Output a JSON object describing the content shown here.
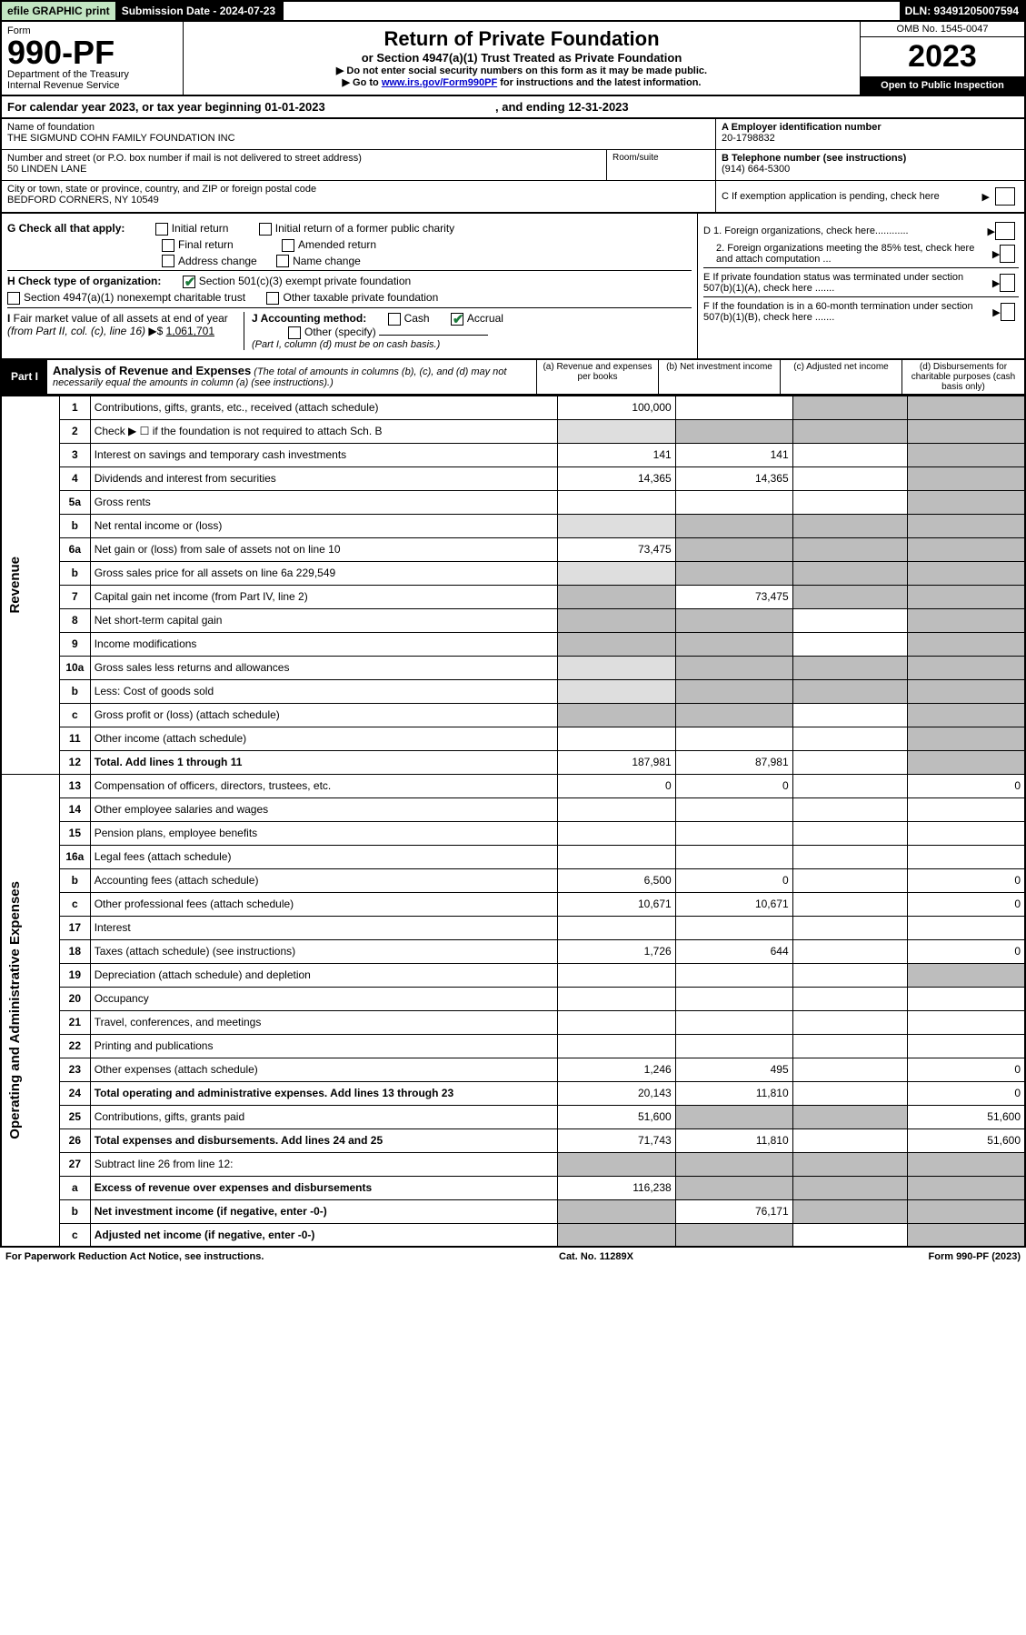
{
  "topbar": {
    "efile": "efile GRAPHIC print",
    "sub_label": "Submission Date - 2024-07-23",
    "dln": "DLN: 93491205007594"
  },
  "header": {
    "form_word": "Form",
    "form_no": "990-PF",
    "dept": "Department of the Treasury",
    "irs": "Internal Revenue Service",
    "title": "Return of Private Foundation",
    "subtitle": "or Section 4947(a)(1) Trust Treated as Private Foundation",
    "note1": "▶ Do not enter social security numbers on this form as it may be made public.",
    "note2": "▶ Go to www.irs.gov/Form990PF for instructions and the latest information.",
    "omb": "OMB No. 1545-0047",
    "year": "2023",
    "open": "Open to Public Inspection"
  },
  "calendar": {
    "line": "For calendar year 2023, or tax year beginning 01-01-2023",
    "ending_gap": ", and ending 12-31-2023"
  },
  "foundation": {
    "name_label": "Name of foundation",
    "name": "THE SIGMUND COHN FAMILY FOUNDATION INC",
    "street_label": "Number and street (or P.O. box number if mail is not delivered to street address)",
    "street": "50 LINDEN LANE",
    "room_label": "Room/suite",
    "city_label": "City or town, state or province, country, and ZIP or foreign postal code",
    "city": "BEDFORD CORNERS, NY  10549",
    "ein_label": "A Employer identification number",
    "ein": "20-1798832",
    "phone_label": "B Telephone number (see instructions)",
    "phone": "(914) 664-5300",
    "c_label": "C If exemption application is pending, check here",
    "d1": "D 1. Foreign organizations, check here............",
    "d2": "2. Foreign organizations meeting the 85% test, check here and attach computation ...",
    "e": "E  If private foundation status was terminated under section 507(b)(1)(A), check here .......",
    "f": "F  If the foundation is in a 60-month termination under section 507(b)(1)(B), check here ......."
  },
  "checks": {
    "g_label": "G Check all that apply:",
    "initial": "Initial return",
    "final": "Final return",
    "address": "Address change",
    "initial_former": "Initial return of a former public charity",
    "amended": "Amended return",
    "name_change": "Name change",
    "h_label": "H Check type of organization:",
    "sec501": "Section 501(c)(3) exempt private foundation",
    "sec4947": "Section 4947(a)(1) nonexempt charitable trust",
    "other_tax": "Other taxable private foundation",
    "i_label": "I Fair market value of all assets at end of year (from Part II, col. (c), line 16) ▶$",
    "i_value": "1,061,701",
    "j_label": "J Accounting method:",
    "cash": "Cash",
    "accrual": "Accrual",
    "other_spec": "Other (specify)",
    "j_note": "(Part I, column (d) must be on cash basis.)"
  },
  "part1": {
    "label": "Part I",
    "title": "Analysis of Revenue and Expenses",
    "note": "(The total of amounts in columns (b), (c), and (d) may not necessarily equal the amounts in column (a) (see instructions).)",
    "col_a": "(a)  Revenue and expenses per books",
    "col_b": "(b)  Net investment income",
    "col_c": "(c)  Adjusted net income",
    "col_d": "(d)  Disbursements for charitable purposes (cash basis only)"
  },
  "side_labels": {
    "revenue": "Revenue",
    "expenses": "Operating and Administrative Expenses"
  },
  "rows": [
    {
      "n": "1",
      "desc": "Contributions, gifts, grants, etc., received (attach schedule)",
      "a": "100,000",
      "b": "",
      "c": "shaded",
      "d": "shaded"
    },
    {
      "n": "2",
      "desc": "Check ▶ ☐ if the foundation is not required to attach Sch. B",
      "a": "shaded-lt",
      "b": "shaded",
      "c": "shaded",
      "d": "shaded"
    },
    {
      "n": "3",
      "desc": "Interest on savings and temporary cash investments",
      "a": "141",
      "b": "141",
      "c": "",
      "d": "shaded"
    },
    {
      "n": "4",
      "desc": "Dividends and interest from securities",
      "a": "14,365",
      "b": "14,365",
      "c": "",
      "d": "shaded"
    },
    {
      "n": "5a",
      "desc": "Gross rents",
      "a": "",
      "b": "",
      "c": "",
      "d": "shaded"
    },
    {
      "n": "b",
      "desc": "Net rental income or (loss)",
      "a": "shaded-lt",
      "b": "shaded",
      "c": "shaded",
      "d": "shaded"
    },
    {
      "n": "6a",
      "desc": "Net gain or (loss) from sale of assets not on line 10",
      "a": "73,475",
      "b": "shaded",
      "c": "shaded",
      "d": "shaded"
    },
    {
      "n": "b",
      "desc": "Gross sales price for all assets on line 6a           229,549",
      "a": "shaded-lt",
      "b": "shaded",
      "c": "shaded",
      "d": "shaded"
    },
    {
      "n": "7",
      "desc": "Capital gain net income (from Part IV, line 2)",
      "a": "shaded",
      "b": "73,475",
      "c": "shaded",
      "d": "shaded"
    },
    {
      "n": "8",
      "desc": "Net short-term capital gain",
      "a": "shaded",
      "b": "shaded",
      "c": "",
      "d": "shaded"
    },
    {
      "n": "9",
      "desc": "Income modifications",
      "a": "shaded",
      "b": "shaded",
      "c": "",
      "d": "shaded"
    },
    {
      "n": "10a",
      "desc": "Gross sales less returns and allowances",
      "a": "shaded-lt",
      "b": "shaded",
      "c": "shaded",
      "d": "shaded"
    },
    {
      "n": "b",
      "desc": "Less: Cost of goods sold",
      "a": "shaded-lt",
      "b": "shaded",
      "c": "shaded",
      "d": "shaded"
    },
    {
      "n": "c",
      "desc": "Gross profit or (loss) (attach schedule)",
      "a": "shaded",
      "b": "shaded",
      "c": "",
      "d": "shaded"
    },
    {
      "n": "11",
      "desc": "Other income (attach schedule)",
      "a": "",
      "b": "",
      "c": "",
      "d": "shaded"
    },
    {
      "n": "12",
      "desc": "Total. Add lines 1 through 11",
      "bold": true,
      "a": "187,981",
      "b": "87,981",
      "c": "",
      "d": "shaded"
    },
    {
      "n": "13",
      "desc": "Compensation of officers, directors, trustees, etc.",
      "a": "0",
      "b": "0",
      "c": "",
      "d": "0"
    },
    {
      "n": "14",
      "desc": "Other employee salaries and wages",
      "a": "",
      "b": "",
      "c": "",
      "d": ""
    },
    {
      "n": "15",
      "desc": "Pension plans, employee benefits",
      "a": "",
      "b": "",
      "c": "",
      "d": ""
    },
    {
      "n": "16a",
      "desc": "Legal fees (attach schedule)",
      "a": "",
      "b": "",
      "c": "",
      "d": ""
    },
    {
      "n": "b",
      "desc": "Accounting fees (attach schedule)",
      "a": "6,500",
      "b": "0",
      "c": "",
      "d": "0"
    },
    {
      "n": "c",
      "desc": "Other professional fees (attach schedule)",
      "a": "10,671",
      "b": "10,671",
      "c": "",
      "d": "0"
    },
    {
      "n": "17",
      "desc": "Interest",
      "a": "",
      "b": "",
      "c": "",
      "d": ""
    },
    {
      "n": "18",
      "desc": "Taxes (attach schedule) (see instructions)",
      "a": "1,726",
      "b": "644",
      "c": "",
      "d": "0"
    },
    {
      "n": "19",
      "desc": "Depreciation (attach schedule) and depletion",
      "a": "",
      "b": "",
      "c": "",
      "d": "shaded"
    },
    {
      "n": "20",
      "desc": "Occupancy",
      "a": "",
      "b": "",
      "c": "",
      "d": ""
    },
    {
      "n": "21",
      "desc": "Travel, conferences, and meetings",
      "a": "",
      "b": "",
      "c": "",
      "d": ""
    },
    {
      "n": "22",
      "desc": "Printing and publications",
      "a": "",
      "b": "",
      "c": "",
      "d": ""
    },
    {
      "n": "23",
      "desc": "Other expenses (attach schedule)",
      "a": "1,246",
      "b": "495",
      "c": "",
      "d": "0"
    },
    {
      "n": "24",
      "desc": "Total operating and administrative expenses. Add lines 13 through 23",
      "bold": true,
      "a": "20,143",
      "b": "11,810",
      "c": "",
      "d": "0"
    },
    {
      "n": "25",
      "desc": "Contributions, gifts, grants paid",
      "a": "51,600",
      "b": "shaded",
      "c": "shaded",
      "d": "51,600"
    },
    {
      "n": "26",
      "desc": "Total expenses and disbursements. Add lines 24 and 25",
      "bold": true,
      "a": "71,743",
      "b": "11,810",
      "c": "",
      "d": "51,600"
    },
    {
      "n": "27",
      "desc": "Subtract line 26 from line 12:",
      "a": "shaded",
      "b": "shaded",
      "c": "shaded",
      "d": "shaded"
    },
    {
      "n": "a",
      "desc": "Excess of revenue over expenses and disbursements",
      "bold": true,
      "a": "116,238",
      "b": "shaded",
      "c": "shaded",
      "d": "shaded"
    },
    {
      "n": "b",
      "desc": "Net investment income (if negative, enter -0-)",
      "bold": true,
      "a": "shaded",
      "b": "76,171",
      "c": "shaded",
      "d": "shaded"
    },
    {
      "n": "c",
      "desc": "Adjusted net income (if negative, enter -0-)",
      "bold": true,
      "a": "shaded",
      "b": "shaded",
      "c": "",
      "d": "shaded"
    }
  ],
  "footer": {
    "left": "For Paperwork Reduction Act Notice, see instructions.",
    "center": "Cat. No. 11289X",
    "right": "Form 990-PF (2023)"
  },
  "colors": {
    "green_bg": "#c2e5c2",
    "shaded": "#bdbdbd",
    "shaded_lt": "#dedede",
    "check_green": "#1a7a3a",
    "link": "#0000cc"
  }
}
